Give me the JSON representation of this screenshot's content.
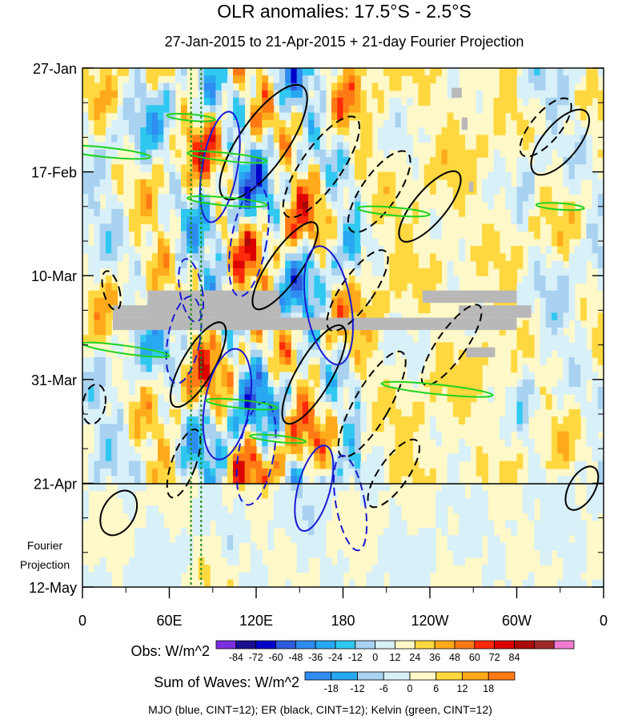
{
  "chart_data": {
    "type": "heatmap",
    "title": "OLR anomalies: 17.5°S - 2.5°S",
    "subtitle": "27-Jan-2015 to 21-Apr-2015 + 21-day Fourier Projection",
    "x_ticks": [
      "0",
      "60E",
      "120E",
      "180",
      "120W",
      "60W",
      "0"
    ],
    "x_lon": [
      0,
      60,
      120,
      180,
      240,
      300,
      360
    ],
    "y_ticks": [
      "27-Jan",
      "17-Feb",
      "10-Mar",
      "31-Mar",
      "21-Apr",
      "12-May"
    ],
    "y_day": [
      0,
      21,
      42,
      63,
      84,
      105
    ],
    "projection_label": [
      "Fourier",
      "Projection"
    ],
    "colorbar_obs": {
      "label": "Obs: W/m^2",
      "ticks": [
        "-84",
        "-72",
        "-60",
        "-48",
        "-36",
        "-24",
        "-12",
        "0",
        "12",
        "24",
        "36",
        "48",
        "60",
        "72",
        "84"
      ],
      "colors": [
        "#7b2fe0",
        "#1a0f8f",
        "#0000c8",
        "#2e5adc",
        "#2f8cf0",
        "#28a8f0",
        "#30c8f0",
        "#a8d2f0",
        "#d8f0f8",
        "#fff8c8",
        "#ffd840",
        "#ffaa1a",
        "#ff7a14",
        "#ff2a0a",
        "#dc0000",
        "#aa0a0a",
        "#a02828",
        "#f07ad0"
      ]
    },
    "colorbar_waves": {
      "label": "Sum of Waves: W/m^2",
      "ticks": [
        "-18",
        "-12",
        "-6",
        "0",
        "6",
        "12",
        "18"
      ],
      "colors": [
        "#2f8cf0",
        "#28a8f0",
        "#a8d2f0",
        "#d8f0f8",
        "#fff8c8",
        "#ffd840",
        "#ffaa1a",
        "#ff7a14"
      ]
    },
    "legend_note": "MJO (blue, CINT=12); ER (black, CINT=12); Kelvin (green, CINT=12)",
    "contour_colors": {
      "mjo": "#1a1ad2",
      "er": "#000000",
      "kelvin": "#1ed21e"
    },
    "missing_color": "#b8b8b8",
    "dotted_lines_lon": [
      75,
      82
    ],
    "projection_boundary_day": 84
  }
}
